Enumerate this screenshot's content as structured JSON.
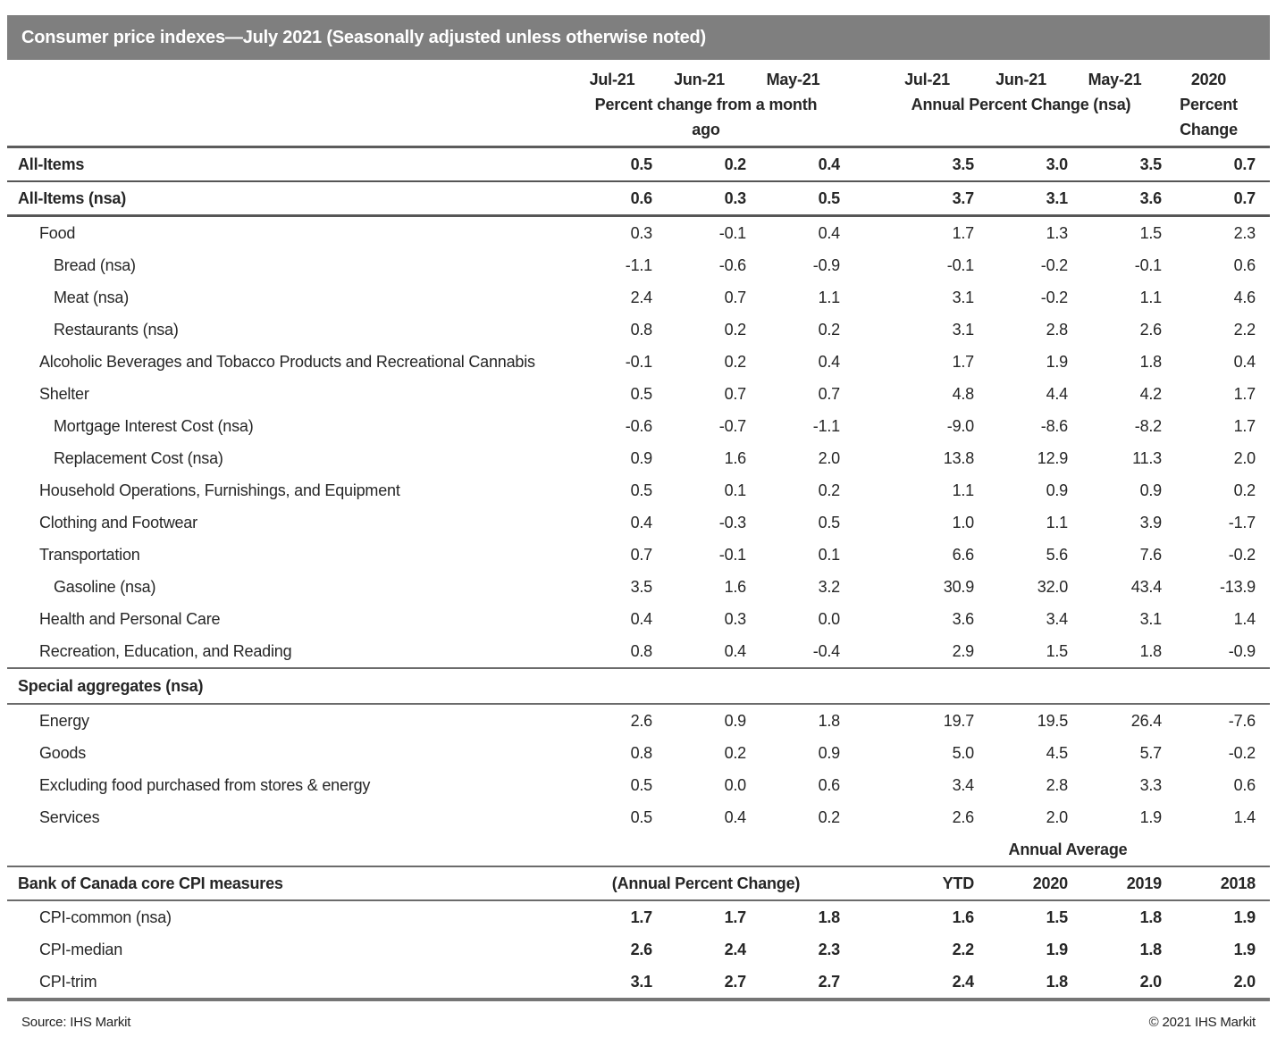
{
  "chart_data": {
    "type": "table",
    "title": "Consumer price indexes—July 2021 (Seasonally adjusted unless otherwise noted)",
    "header": {
      "group1": {
        "months": [
          "Jul-21",
          "Jun-21",
          "May-21"
        ],
        "label": "Percent change from a month ago"
      },
      "group2": {
        "months": [
          "Jul-21",
          "Jun-21",
          "May-21"
        ],
        "label": "Annual Percent Change (nsa)"
      },
      "col2020": {
        "year": "2020",
        "label": "Percent Change"
      }
    },
    "rows": [
      {
        "label": "All-Items",
        "indent": 0,
        "bold": true,
        "rule_below": "thin",
        "values": [
          "0.5",
          "0.2",
          "0.4",
          "3.5",
          "3.0",
          "3.5",
          "0.7"
        ]
      },
      {
        "label": "All-Items (nsa)",
        "indent": 0,
        "bold": true,
        "rule_below": "thick",
        "values": [
          "0.6",
          "0.3",
          "0.5",
          "3.7",
          "3.1",
          "3.6",
          "0.7"
        ]
      },
      {
        "label": "Food",
        "indent": 1,
        "values": [
          "0.3",
          "-0.1",
          "0.4",
          "1.7",
          "1.3",
          "1.5",
          "2.3"
        ]
      },
      {
        "label": "Bread (nsa)",
        "indent": 2,
        "values": [
          "-1.1",
          "-0.6",
          "-0.9",
          "-0.1",
          "-0.2",
          "-0.1",
          "0.6"
        ]
      },
      {
        "label": "Meat (nsa)",
        "indent": 2,
        "values": [
          "2.4",
          "0.7",
          "1.1",
          "3.1",
          "-0.2",
          "1.1",
          "4.6"
        ]
      },
      {
        "label": "Restaurants (nsa)",
        "indent": 2,
        "values": [
          "0.8",
          "0.2",
          "0.2",
          "3.1",
          "2.8",
          "2.6",
          "2.2"
        ]
      },
      {
        "label": "Alcoholic Beverages and Tobacco Products and Recreational Cannabis",
        "indent": 1,
        "values": [
          "-0.1",
          "0.2",
          "0.4",
          "1.7",
          "1.9",
          "1.8",
          "0.4"
        ]
      },
      {
        "label": "Shelter",
        "indent": 1,
        "values": [
          "0.5",
          "0.7",
          "0.7",
          "4.8",
          "4.4",
          "4.2",
          "1.7"
        ]
      },
      {
        "label": "Mortgage Interest Cost (nsa)",
        "indent": 2,
        "values": [
          "-0.6",
          "-0.7",
          "-1.1",
          "-9.0",
          "-8.6",
          "-8.2",
          "1.7"
        ]
      },
      {
        "label": "Replacement Cost (nsa)",
        "indent": 2,
        "values": [
          "0.9",
          "1.6",
          "2.0",
          "13.8",
          "12.9",
          "11.3",
          "2.0"
        ]
      },
      {
        "label": "Household Operations, Furnishings, and Equipment",
        "indent": 1,
        "values": [
          "0.5",
          "0.1",
          "0.2",
          "1.1",
          "0.9",
          "0.9",
          "0.2"
        ]
      },
      {
        "label": "Clothing and Footwear",
        "indent": 1,
        "values": [
          "0.4",
          "-0.3",
          "0.5",
          "1.0",
          "1.1",
          "3.9",
          "-1.7"
        ]
      },
      {
        "label": "Transportation",
        "indent": 1,
        "values": [
          "0.7",
          "-0.1",
          "0.1",
          "6.6",
          "5.6",
          "7.6",
          "-0.2"
        ]
      },
      {
        "label": "Gasoline (nsa)",
        "indent": 2,
        "values": [
          "3.5",
          "1.6",
          "3.2",
          "30.9",
          "32.0",
          "43.4",
          "-13.9"
        ]
      },
      {
        "label": "Health and Personal Care",
        "indent": 1,
        "values": [
          "0.4",
          "0.3",
          "0.0",
          "3.6",
          "3.4",
          "3.1",
          "1.4"
        ]
      },
      {
        "label": "Recreation, Education, and Reading",
        "indent": 1,
        "values": [
          "0.8",
          "0.4",
          "-0.4",
          "2.9",
          "1.5",
          "1.8",
          "-0.9"
        ]
      },
      {
        "type": "section",
        "label": "Special aggregates (nsa)"
      },
      {
        "label": "Energy",
        "indent": 1,
        "values": [
          "2.6",
          "0.9",
          "1.8",
          "19.7",
          "19.5",
          "26.4",
          "-7.6"
        ]
      },
      {
        "label": "Goods",
        "indent": 1,
        "values": [
          "0.8",
          "0.2",
          "0.9",
          "5.0",
          "4.5",
          "5.7",
          "-0.2"
        ]
      },
      {
        "label": "Excluding food purchased from stores & energy",
        "indent": 1,
        "values": [
          "0.5",
          "0.0",
          "0.6",
          "3.4",
          "2.8",
          "3.3",
          "0.6"
        ]
      },
      {
        "label": "Services",
        "indent": 1,
        "values": [
          "0.5",
          "0.4",
          "0.2",
          "2.6",
          "2.0",
          "1.9",
          "1.4"
        ]
      },
      {
        "type": "annual-average",
        "label": "Annual Average"
      },
      {
        "type": "boc-header",
        "label": "Bank of Canada core CPI measures",
        "subtitle": "(Annual Percent Change)",
        "columns": [
          "YTD",
          "2020",
          "2019",
          "2018"
        ]
      },
      {
        "label": "CPI-common (nsa)",
        "indent": 1,
        "bold_values": true,
        "values": [
          "1.7",
          "1.7",
          "1.8",
          "1.6",
          "1.5",
          "1.8",
          "1.9"
        ]
      },
      {
        "label": "CPI-median",
        "indent": 1,
        "bold_values": true,
        "values": [
          "2.6",
          "2.4",
          "2.3",
          "2.2",
          "1.9",
          "1.8",
          "1.9"
        ]
      },
      {
        "label": "CPI-trim",
        "indent": 1,
        "bold_values": true,
        "last": true,
        "values": [
          "3.1",
          "2.7",
          "2.7",
          "2.4",
          "1.8",
          "2.0",
          "2.0"
        ]
      }
    ]
  },
  "footer": {
    "source": "Source: IHS Markit",
    "copyright": "© 2021 IHS Markit"
  }
}
